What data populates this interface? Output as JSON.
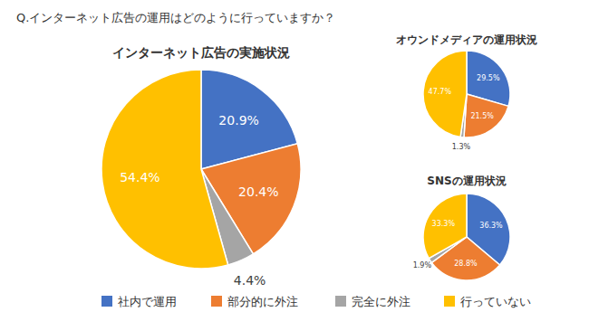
{
  "header": {
    "title": "Q.インターネット広告の運用はどのように行っていますか？"
  },
  "chart_data": [
    {
      "type": "pie",
      "title": "インターネット広告の実施状況",
      "categories": [
        "社内で運用",
        "部分的に外注",
        "完全に外注",
        "行っていない"
      ],
      "values": [
        20.9,
        20.4,
        4.4,
        54.4
      ],
      "value_labels": [
        "20.9%",
        "20.4%",
        "4.4%",
        "54.4%"
      ],
      "colors": [
        "#4472c4",
        "#ed7d31",
        "#a5a5a5",
        "#ffc000"
      ],
      "data_labels": true,
      "legend": "bottom"
    },
    {
      "type": "pie",
      "title": "オウンドメディアの運用状況",
      "categories": [
        "社内で運用",
        "部分的に外注",
        "完全に外注",
        "行っていない"
      ],
      "values": [
        29.5,
        21.5,
        1.3,
        47.7
      ],
      "value_labels": [
        "29.5%",
        "21.5%",
        "1.3%",
        "47.7%"
      ],
      "colors": [
        "#4472c4",
        "#ed7d31",
        "#a5a5a5",
        "#ffc000"
      ],
      "data_labels": true
    },
    {
      "type": "pie",
      "title": "SNSの運用状況",
      "categories": [
        "社内で運用",
        "部分的に外注",
        "完全に外注",
        "行っていない"
      ],
      "values": [
        36.3,
        28.8,
        1.9,
        33.3
      ],
      "value_labels": [
        "36.3%",
        "28.8%",
        "1.9%",
        "33.3%"
      ],
      "colors": [
        "#4472c4",
        "#ed7d31",
        "#a5a5a5",
        "#ffc000"
      ],
      "data_labels": true
    }
  ]
}
